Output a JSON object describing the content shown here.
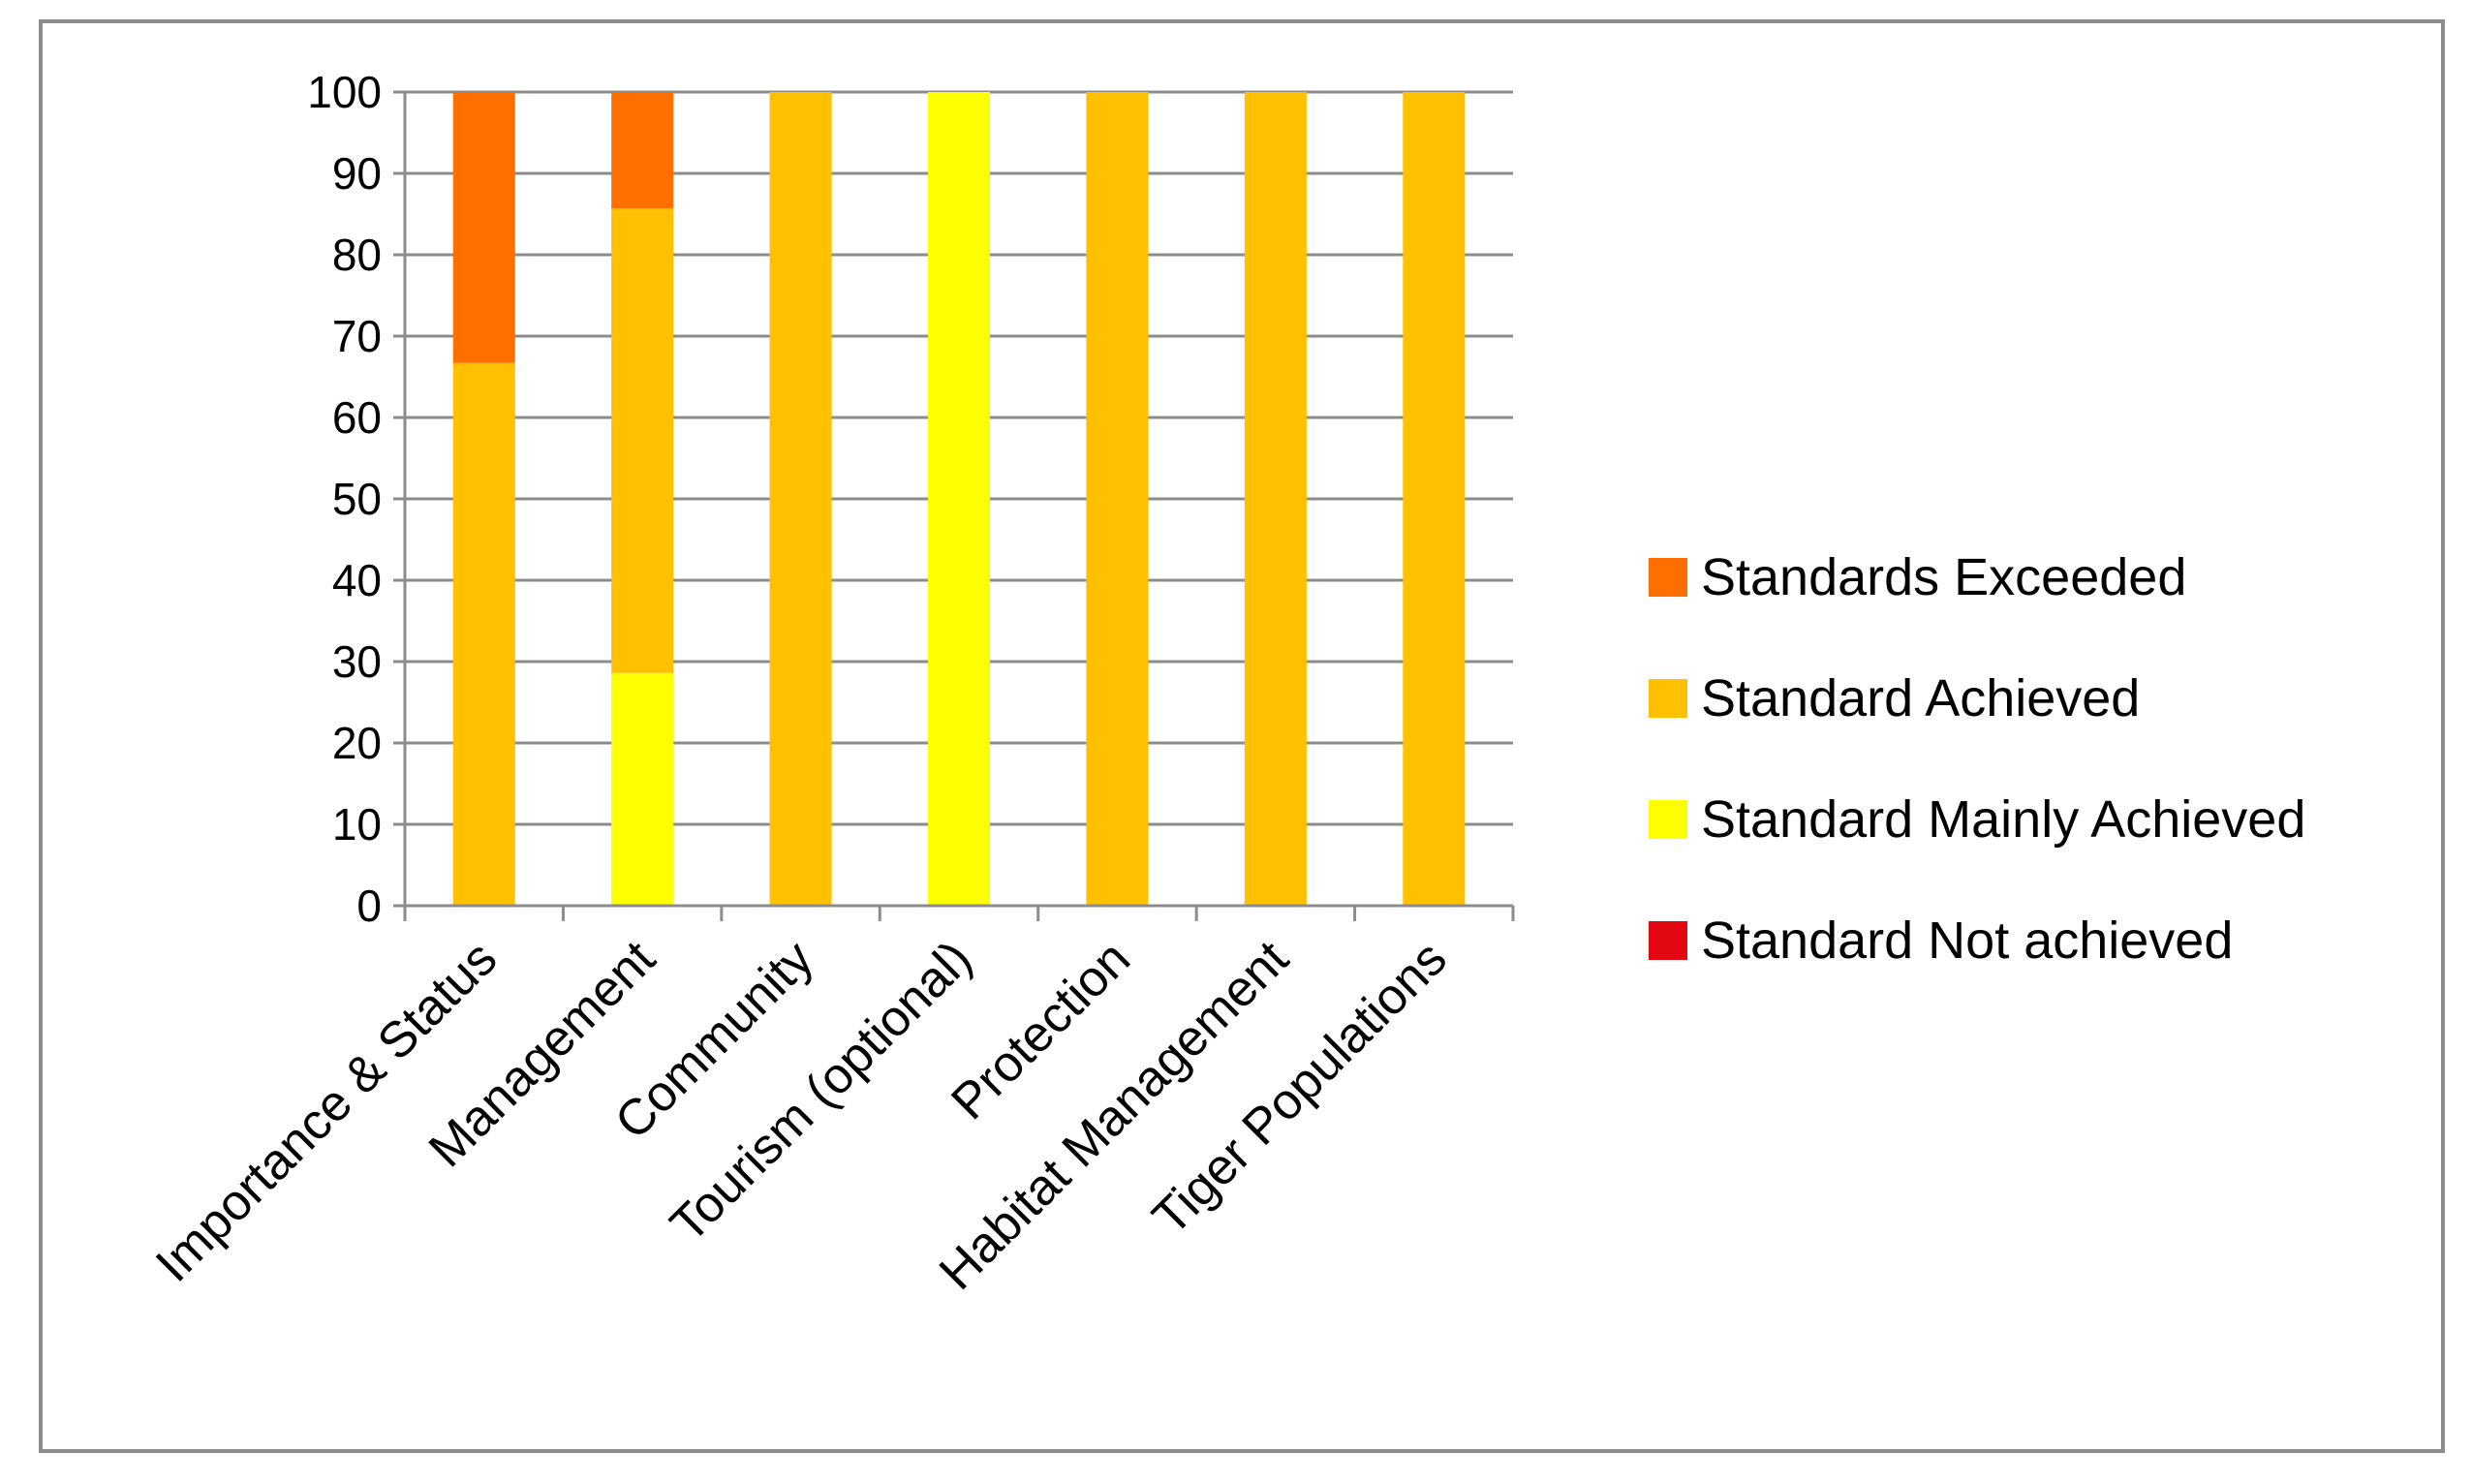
{
  "chart_data": {
    "type": "bar",
    "stacked": true,
    "title": "",
    "xlabel": "",
    "ylabel": "",
    "ylim": [
      0,
      100
    ],
    "yticks": [
      0,
      10,
      20,
      30,
      40,
      50,
      60,
      70,
      80,
      90,
      100
    ],
    "grid": true,
    "legend_position": "right",
    "categories": [
      "Importance & Status",
      "Management",
      "Community",
      "Tourism (optional)",
      "Protection",
      "Habitat Management",
      "Tiger Populations"
    ],
    "series": [
      {
        "name": "Standard Not achieved",
        "color": "#e30613",
        "values": [
          0,
          0,
          0,
          0,
          0,
          0,
          0
        ]
      },
      {
        "name": "Standard Mainly Achieved",
        "color": "#ffff00",
        "values": [
          0,
          28.6,
          0,
          100,
          0,
          0,
          0
        ]
      },
      {
        "name": "Standard Achieved",
        "color": "#ffc000",
        "values": [
          66.7,
          57.1,
          100,
          0,
          100,
          100,
          100
        ]
      },
      {
        "name": "Standards Exceeded",
        "color": "#ff6f00",
        "values": [
          33.3,
          14.3,
          0,
          0,
          0,
          0,
          0
        ]
      }
    ],
    "legend_order": [
      "Standards Exceeded",
      "Standard Achieved",
      "Standard Mainly Achieved",
      "Standard Not achieved"
    ]
  }
}
